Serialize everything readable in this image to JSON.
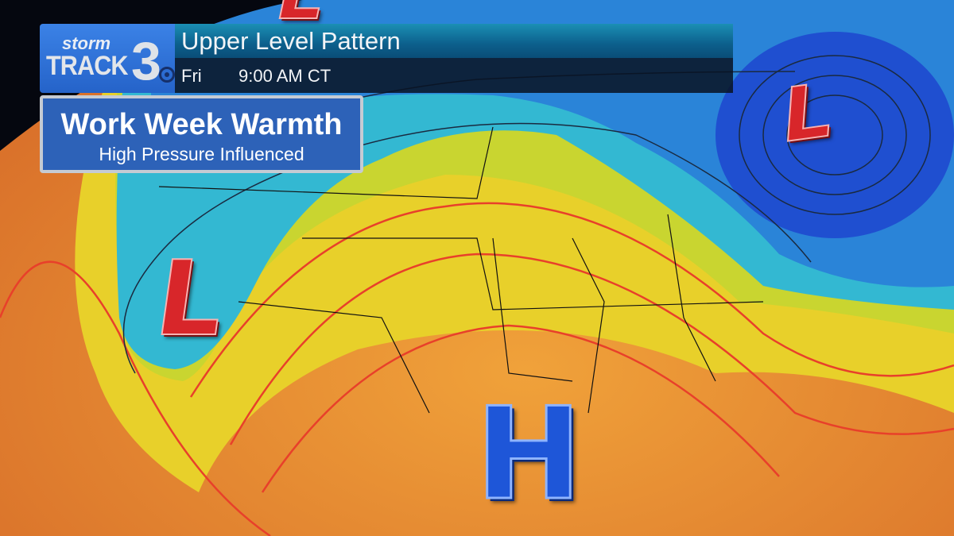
{
  "logo": {
    "line1": "storm",
    "line2": "TRACK",
    "channel": "3",
    "network_icon": "cbs-eye-icon"
  },
  "header": {
    "title": "Upper Level Pattern",
    "day": "Fri",
    "time": "9:00 AM CT"
  },
  "headline": {
    "title": "Work Week Warmth",
    "subtitle": "High Pressure Influenced"
  },
  "markers": [
    {
      "label": "L",
      "type": "low-pressure"
    },
    {
      "label": "L",
      "type": "low-pressure"
    },
    {
      "label": "L",
      "type": "low-pressure"
    },
    {
      "label": "H",
      "type": "high-pressure"
    }
  ],
  "colors": {
    "low": "#d8262a",
    "high": "#1e56d8",
    "warm": "#e9892a",
    "cool": "#2fb6d8",
    "cold": "#1f4fd0",
    "contour_warm": "#e8402a",
    "contour_cool": "#1a2a40"
  }
}
